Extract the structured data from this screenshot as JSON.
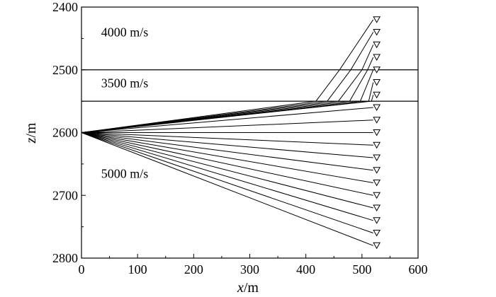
{
  "figure": {
    "x_axis": {
      "label_italic": "x",
      "label_unit": "/m",
      "range": [
        0,
        600
      ],
      "ticks": [
        0,
        100,
        200,
        300,
        400,
        500,
        600
      ]
    },
    "z_axis": {
      "label_italic": "z",
      "label_unit": "/m",
      "range": [
        2400,
        2800
      ],
      "inverted": true,
      "ticks": [
        2400,
        2500,
        2600,
        2700,
        2800
      ]
    },
    "interfaces_z": [
      2500,
      2550
    ],
    "layers": [
      {
        "label": "4000 m/s",
        "anchor": [
          35,
          2447
        ]
      },
      {
        "label": "3500 m/s",
        "anchor": [
          35,
          2528
        ]
      },
      {
        "label": "5000 m/s",
        "anchor": [
          35,
          2672
        ]
      }
    ],
    "source": {
      "x": 0,
      "z": 2600
    },
    "receiver_x": 520,
    "rays": [
      {
        "rz": 2420,
        "kinks": [
          [
            418,
            2550
          ],
          [
            460,
            2500
          ]
        ]
      },
      {
        "rz": 2440,
        "kinks": [
          [
            438,
            2550
          ],
          [
            480,
            2500
          ]
        ]
      },
      {
        "rz": 2460,
        "kinks": [
          [
            458,
            2550
          ],
          [
            500,
            2500
          ]
        ]
      },
      {
        "rz": 2480,
        "kinks": [
          [
            478,
            2550
          ],
          [
            510,
            2500
          ]
        ]
      },
      {
        "rz": 2500,
        "kinks": [
          [
            497,
            2550
          ]
        ]
      },
      {
        "rz": 2520,
        "kinks": [
          [
            512,
            2550
          ]
        ]
      },
      {
        "rz": 2540,
        "kinks": [
          [
            517,
            2550
          ]
        ]
      },
      {
        "rz": 2560,
        "kinks": []
      },
      {
        "rz": 2580,
        "kinks": []
      },
      {
        "rz": 2600,
        "kinks": []
      },
      {
        "rz": 2620,
        "kinks": []
      },
      {
        "rz": 2640,
        "kinks": []
      },
      {
        "rz": 2660,
        "kinks": []
      },
      {
        "rz": 2680,
        "kinks": []
      },
      {
        "rz": 2700,
        "kinks": []
      },
      {
        "rz": 2720,
        "kinks": []
      },
      {
        "rz": 2740,
        "kinks": []
      },
      {
        "rz": 2760,
        "kinks": []
      },
      {
        "rz": 2780,
        "kinks": []
      }
    ],
    "receivers_z": [
      2420,
      2440,
      2460,
      2480,
      2500,
      2520,
      2540,
      2560,
      2580,
      2600,
      2620,
      2640,
      2660,
      2680,
      2700,
      2720,
      2740,
      2760,
      2780
    ]
  }
}
